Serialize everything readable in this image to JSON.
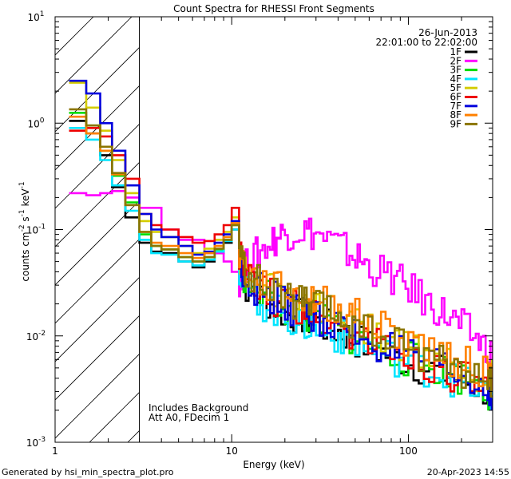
{
  "chart_data": {
    "type": "line",
    "title": "Count Spectra for RHESSI Front Segments",
    "xlabel": "Energy (keV)",
    "ylabel_parts": [
      "counts cm",
      "-2",
      " s",
      "-1",
      " keV",
      "-1"
    ],
    "x_scale": "log",
    "y_scale": "log",
    "xlim": [
      1,
      300
    ],
    "ylim": [
      0.001,
      10
    ],
    "x_ticks": [
      {
        "v": 1,
        "label": "1"
      },
      {
        "v": 10,
        "label": "10"
      },
      {
        "v": 100,
        "label": "100"
      }
    ],
    "y_ticks": [
      {
        "v": 0.001,
        "base": "10",
        "exp": "-3"
      },
      {
        "v": 0.01,
        "base": "10",
        "exp": "-2"
      },
      {
        "v": 0.1,
        "base": "10",
        "exp": "-1"
      },
      {
        "v": 1,
        "base": "10",
        "exp": "0"
      },
      {
        "v": 10,
        "base": "10",
        "exp": "1"
      }
    ],
    "hatched_region": [
      1,
      3
    ],
    "date": "26-Jun-2013",
    "time_range": "22:01:00 to 22:02:00",
    "notes": [
      "Includes Background",
      "Att A0, FDecim 1"
    ],
    "series": [
      {
        "name": "1F",
        "color": "#000000",
        "points": [
          [
            1.2,
            1.05
          ],
          [
            1.5,
            0.8
          ],
          [
            1.8,
            0.5
          ],
          [
            2.1,
            0.25
          ],
          [
            2.5,
            0.13
          ],
          [
            3,
            0.075
          ],
          [
            3.5,
            0.062
          ],
          [
            4,
            0.06
          ],
          [
            5,
            0.05
          ],
          [
            6,
            0.044
          ],
          [
            7,
            0.05
          ],
          [
            8,
            0.06
          ],
          [
            9,
            0.075
          ],
          [
            10,
            0.1
          ],
          [
            11,
            0.045
          ],
          [
            12,
            0.03
          ],
          [
            15,
            0.022
          ],
          [
            20,
            0.016
          ],
          [
            25,
            0.015
          ],
          [
            30,
            0.013
          ],
          [
            40,
            0.011
          ],
          [
            50,
            0.009
          ],
          [
            70,
            0.007
          ],
          [
            100,
            0.0055
          ],
          [
            150,
            0.0045
          ],
          [
            200,
            0.0038
          ],
          [
            280,
            0.003
          ]
        ]
      },
      {
        "name": "2F",
        "color": "#ff00ff",
        "points": [
          [
            1.2,
            0.22
          ],
          [
            1.5,
            0.21
          ],
          [
            1.8,
            0.22
          ],
          [
            2.1,
            0.23
          ],
          [
            2.5,
            0.2
          ],
          [
            3,
            0.16
          ],
          [
            4,
            0.1
          ],
          [
            5,
            0.08
          ],
          [
            7,
            0.06
          ],
          [
            9,
            0.05
          ],
          [
            10,
            0.04
          ],
          [
            11,
            0.035
          ],
          [
            12,
            0.045
          ],
          [
            14,
            0.06
          ],
          [
            17,
            0.08
          ],
          [
            20,
            0.095
          ],
          [
            25,
            0.1
          ],
          [
            30,
            0.09
          ],
          [
            40,
            0.07
          ],
          [
            50,
            0.055
          ],
          [
            60,
            0.045
          ],
          [
            80,
            0.035
          ],
          [
            100,
            0.028
          ],
          [
            130,
            0.02
          ],
          [
            160,
            0.016
          ],
          [
            200,
            0.012
          ],
          [
            250,
            0.009
          ],
          [
            300,
            0.0065
          ]
        ]
      },
      {
        "name": "3F",
        "color": "#00dd00",
        "points": [
          [
            1.2,
            1.25
          ],
          [
            1.5,
            0.95
          ],
          [
            1.8,
            0.55
          ],
          [
            2.1,
            0.32
          ],
          [
            2.5,
            0.18
          ],
          [
            3,
            0.09
          ],
          [
            3.5,
            0.07
          ],
          [
            4,
            0.065
          ],
          [
            5,
            0.055
          ],
          [
            6,
            0.05
          ],
          [
            7,
            0.055
          ],
          [
            8,
            0.065
          ],
          [
            9,
            0.08
          ],
          [
            10,
            0.11
          ],
          [
            11,
            0.05
          ],
          [
            12,
            0.032
          ],
          [
            15,
            0.024
          ],
          [
            20,
            0.018
          ],
          [
            25,
            0.016
          ],
          [
            30,
            0.014
          ],
          [
            40,
            0.012
          ],
          [
            50,
            0.009
          ],
          [
            70,
            0.0075
          ],
          [
            100,
            0.006
          ],
          [
            150,
            0.0048
          ],
          [
            200,
            0.004
          ],
          [
            280,
            0.003
          ]
        ]
      },
      {
        "name": "4F",
        "color": "#00e5ff",
        "points": [
          [
            1.2,
            0.9
          ],
          [
            1.5,
            0.7
          ],
          [
            1.8,
            0.45
          ],
          [
            2.1,
            0.26
          ],
          [
            2.5,
            0.15
          ],
          [
            3,
            0.08
          ],
          [
            3.5,
            0.06
          ],
          [
            4,
            0.058
          ],
          [
            5,
            0.05
          ],
          [
            6,
            0.046
          ],
          [
            7,
            0.052
          ],
          [
            8,
            0.062
          ],
          [
            9,
            0.078
          ],
          [
            10,
            0.1
          ],
          [
            11,
            0.044
          ],
          [
            12,
            0.03
          ],
          [
            15,
            0.02
          ],
          [
            20,
            0.015
          ],
          [
            25,
            0.013
          ],
          [
            30,
            0.012
          ],
          [
            40,
            0.01
          ],
          [
            50,
            0.0085
          ],
          [
            70,
            0.007
          ],
          [
            100,
            0.0055
          ],
          [
            150,
            0.0045
          ],
          [
            200,
            0.0036
          ],
          [
            280,
            0.0028
          ]
        ]
      },
      {
        "name": "5F",
        "color": "#d4cc00",
        "points": [
          [
            1.2,
            2.4
          ],
          [
            1.5,
            1.4
          ],
          [
            1.8,
            0.85
          ],
          [
            2.1,
            0.45
          ],
          [
            2.5,
            0.22
          ],
          [
            3,
            0.12
          ],
          [
            3.5,
            0.095
          ],
          [
            4,
            0.085
          ],
          [
            5,
            0.07
          ],
          [
            6,
            0.06
          ],
          [
            7,
            0.066
          ],
          [
            8,
            0.08
          ],
          [
            9,
            0.095
          ],
          [
            10,
            0.13
          ],
          [
            11,
            0.06
          ],
          [
            12,
            0.04
          ],
          [
            15,
            0.03
          ],
          [
            20,
            0.024
          ],
          [
            25,
            0.021
          ],
          [
            30,
            0.019
          ],
          [
            40,
            0.016
          ],
          [
            50,
            0.013
          ],
          [
            70,
            0.01
          ],
          [
            100,
            0.008
          ],
          [
            150,
            0.0063
          ],
          [
            200,
            0.005
          ],
          [
            280,
            0.004
          ]
        ]
      },
      {
        "name": "6F",
        "color": "#ee0000",
        "points": [
          [
            1.2,
            0.85
          ],
          [
            1.5,
            0.9
          ],
          [
            1.8,
            0.75
          ],
          [
            2.1,
            0.5
          ],
          [
            2.5,
            0.3
          ],
          [
            3,
            0.14
          ],
          [
            3.5,
            0.11
          ],
          [
            4,
            0.1
          ],
          [
            5,
            0.085
          ],
          [
            6,
            0.075
          ],
          [
            7,
            0.078
          ],
          [
            8,
            0.09
          ],
          [
            9,
            0.11
          ],
          [
            10,
            0.16
          ],
          [
            11,
            0.06
          ],
          [
            12,
            0.035
          ],
          [
            15,
            0.025
          ],
          [
            20,
            0.02
          ],
          [
            25,
            0.018
          ],
          [
            30,
            0.015
          ],
          [
            40,
            0.012
          ],
          [
            50,
            0.01
          ],
          [
            70,
            0.008
          ],
          [
            100,
            0.0062
          ],
          [
            150,
            0.005
          ],
          [
            200,
            0.004
          ],
          [
            280,
            0.003
          ]
        ]
      },
      {
        "name": "7F",
        "color": "#0000dd",
        "points": [
          [
            1.2,
            2.5
          ],
          [
            1.5,
            1.9
          ],
          [
            1.8,
            1.0
          ],
          [
            2.1,
            0.55
          ],
          [
            2.5,
            0.26
          ],
          [
            3,
            0.14
          ],
          [
            3.5,
            0.1
          ],
          [
            4,
            0.085
          ],
          [
            5,
            0.07
          ],
          [
            6,
            0.058
          ],
          [
            7,
            0.062
          ],
          [
            8,
            0.075
          ],
          [
            9,
            0.09
          ],
          [
            10,
            0.12
          ],
          [
            11,
            0.055
          ],
          [
            12,
            0.034
          ],
          [
            15,
            0.025
          ],
          [
            20,
            0.019
          ],
          [
            25,
            0.017
          ],
          [
            30,
            0.015
          ],
          [
            40,
            0.012
          ],
          [
            50,
            0.01
          ],
          [
            70,
            0.008
          ],
          [
            100,
            0.0062
          ],
          [
            150,
            0.0048
          ],
          [
            200,
            0.0038
          ],
          [
            280,
            0.003
          ]
        ]
      },
      {
        "name": "8F",
        "color": "#ff8000",
        "points": [
          [
            1.2,
            1.15
          ],
          [
            1.5,
            0.8
          ],
          [
            1.8,
            0.55
          ],
          [
            2.1,
            0.33
          ],
          [
            2.5,
            0.17
          ],
          [
            3,
            0.095
          ],
          [
            3.5,
            0.075
          ],
          [
            4,
            0.07
          ],
          [
            5,
            0.06
          ],
          [
            6,
            0.054
          ],
          [
            7,
            0.06
          ],
          [
            8,
            0.07
          ],
          [
            9,
            0.085
          ],
          [
            10,
            0.115
          ],
          [
            11,
            0.06
          ],
          [
            12,
            0.04
          ],
          [
            15,
            0.03
          ],
          [
            20,
            0.025
          ],
          [
            25,
            0.023
          ],
          [
            30,
            0.021
          ],
          [
            40,
            0.018
          ],
          [
            50,
            0.015
          ],
          [
            70,
            0.012
          ],
          [
            100,
            0.009
          ],
          [
            150,
            0.007
          ],
          [
            200,
            0.0055
          ],
          [
            280,
            0.0045
          ]
        ]
      },
      {
        "name": "9F",
        "color": "#8b7500",
        "points": [
          [
            1.2,
            1.35
          ],
          [
            1.5,
            0.95
          ],
          [
            1.8,
            0.6
          ],
          [
            2.1,
            0.34
          ],
          [
            2.5,
            0.17
          ],
          [
            3,
            0.095
          ],
          [
            3.5,
            0.07
          ],
          [
            4,
            0.065
          ],
          [
            5,
            0.055
          ],
          [
            6,
            0.05
          ],
          [
            7,
            0.055
          ],
          [
            8,
            0.066
          ],
          [
            9,
            0.08
          ],
          [
            10,
            0.11
          ],
          [
            11,
            0.06
          ],
          [
            12,
            0.04
          ],
          [
            15,
            0.028
          ],
          [
            20,
            0.022
          ],
          [
            25,
            0.02
          ],
          [
            30,
            0.018
          ],
          [
            40,
            0.015
          ],
          [
            50,
            0.012
          ],
          [
            70,
            0.0095
          ],
          [
            100,
            0.0075
          ],
          [
            150,
            0.006
          ],
          [
            200,
            0.0048
          ],
          [
            280,
            0.0038
          ]
        ]
      }
    ]
  },
  "footer": {
    "left": "Generated by hsi_min_spectra_plot.pro",
    "right": "20-Apr-2023 14:55"
  }
}
